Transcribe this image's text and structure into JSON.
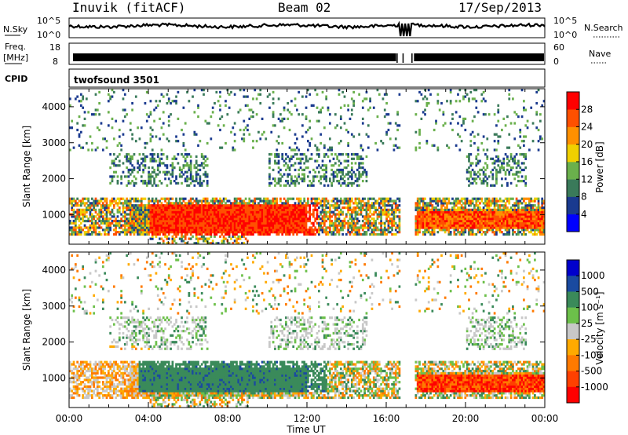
{
  "header": {
    "station": "Inuvik (fitACF)",
    "beam": "Beam 02",
    "date": "17/Sep/2013"
  },
  "nsky_panel": {
    "left_label": "N.Sky",
    "left_ticks": [
      "10^5",
      "10^0"
    ],
    "right_label": "N.Search",
    "right_ticks": [
      "10^5",
      "10^0"
    ]
  },
  "freq_panel": {
    "left_label_1": "Freq.",
    "left_label_2": "[MHz]",
    "left_ticks": [
      "18",
      "8"
    ],
    "right_label": "Nave",
    "right_ticks": [
      "60",
      "0"
    ]
  },
  "cpid": {
    "label": "CPID",
    "value": "twofsound 3501"
  },
  "colors": {
    "power_scale": [
      "#0000ff",
      "#1a3a8f",
      "#3a7a5a",
      "#6ab04c",
      "#f0d000",
      "#ff9000",
      "#ff5000",
      "#ff0000"
    ],
    "velocity_scale": [
      "#0000cc",
      "#1a4aa0",
      "#3a8a5a",
      "#6cc04a",
      "#c8c8c8",
      "#ffaa00",
      "#ff7a00",
      "#ff4000",
      "#ff0000"
    ]
  },
  "chart_data": [
    {
      "type": "heatmap",
      "name": "power",
      "xlabel": "",
      "ylabel": "Slant Range [km]",
      "xlim": [
        0,
        24
      ],
      "ylim": [
        180,
        4500
      ],
      "yticks": [
        1000,
        2000,
        3000,
        4000
      ],
      "colorbar": {
        "label": "Power [dB]",
        "ticks": [
          "4",
          "8",
          "12",
          "16",
          "20",
          "24",
          "28"
        ],
        "range": [
          0,
          32
        ]
      }
    },
    {
      "type": "heatmap",
      "name": "velocity",
      "xlabel": "Time UT",
      "ylabel": "Slant Range [km]",
      "xlim": [
        0,
        24
      ],
      "ylim": [
        180,
        4500
      ],
      "yticks": [
        1000,
        2000,
        3000,
        4000
      ],
      "xticks": [
        "00:00",
        "04:00",
        "08:00",
        "12:00",
        "16:00",
        "20:00",
        "00:00"
      ],
      "colorbar": {
        "label": "Velocity [m s⁻¹]",
        "ticks": [
          "1000",
          "500",
          "100",
          "25",
          "-25",
          "-100",
          "-500",
          "-1000"
        ]
      }
    }
  ]
}
